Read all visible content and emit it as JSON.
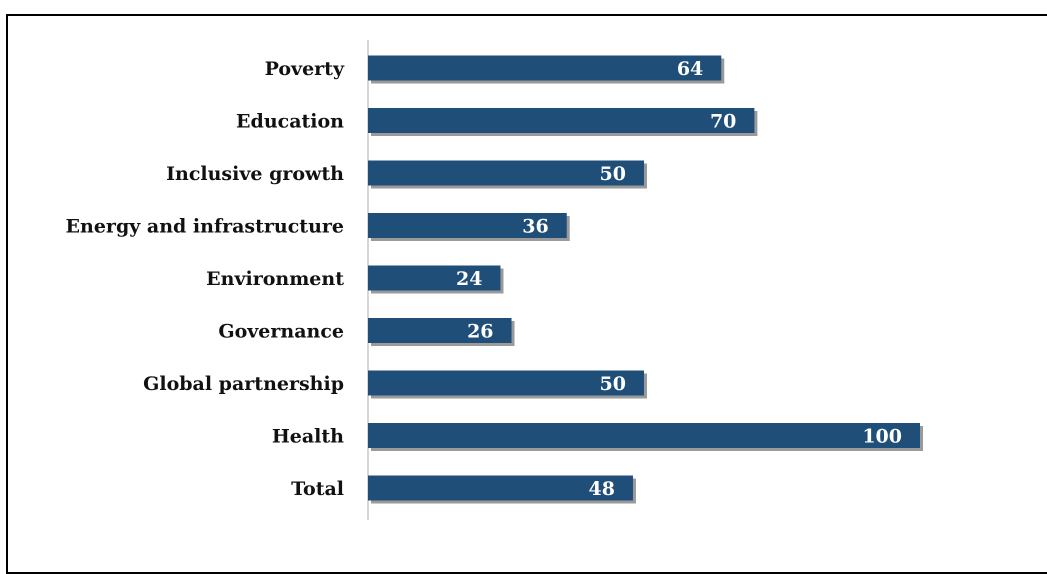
{
  "caption": "",
  "chart_data": {
    "type": "bar",
    "orientation": "horizontal",
    "categories": [
      "Poverty",
      "Education",
      "Inclusive growth",
      "Energy and infrastructure",
      "Environment",
      "Governance",
      "Global partnership",
      "Health",
      "Total"
    ],
    "values": [
      64,
      70,
      50,
      36,
      24,
      26,
      50,
      100,
      48
    ],
    "xlim": [
      0,
      100
    ],
    "grid": false,
    "legend": "none",
    "bar_color": "#1f4e79",
    "shadow_color": "#9a9a9a"
  }
}
